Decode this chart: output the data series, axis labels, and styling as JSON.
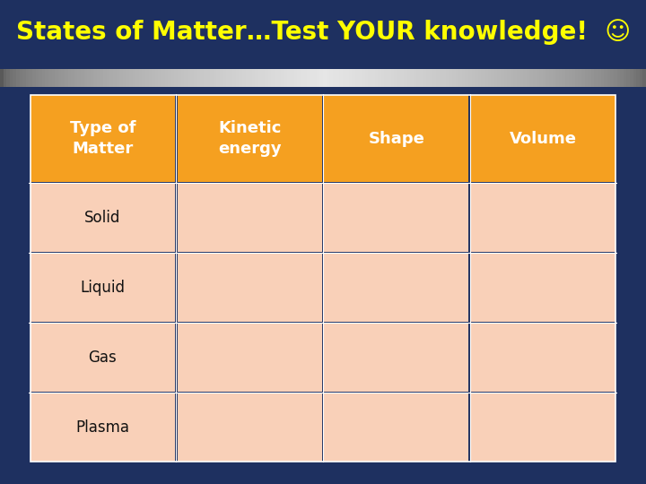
{
  "title": "States of Matter…Test YOUR knowledge!  ☺",
  "title_color": "#FFFF00",
  "bg_color": "#1e3060",
  "header_bg": "#F5A020",
  "header_text_color": "#FFFFFF",
  "row_bg": "#F9D0B8",
  "headers": [
    "Type of\nMatter",
    "Kinetic\nenergy",
    "Shape",
    "Volume"
  ],
  "rows": [
    "Solid",
    "Liquid",
    "Gas",
    "Plasma"
  ]
}
